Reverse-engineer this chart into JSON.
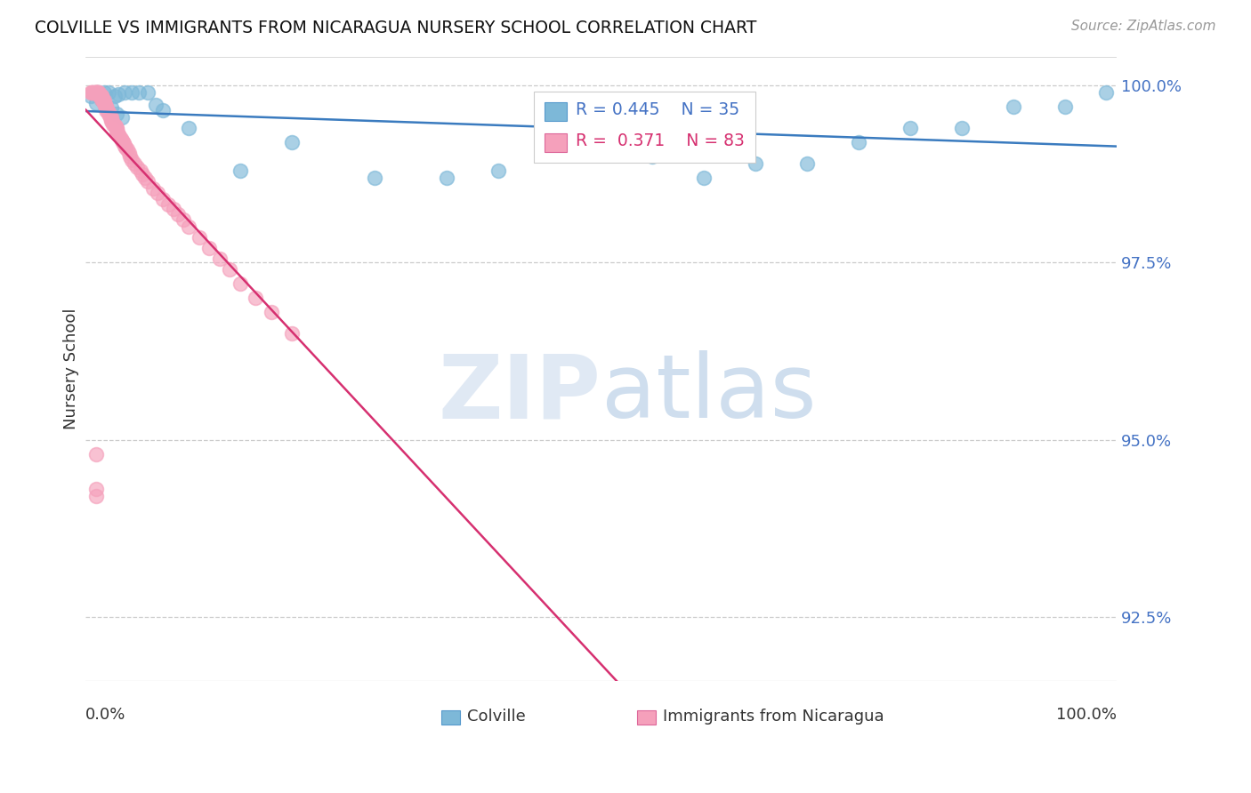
{
  "title": "COLVILLE VS IMMIGRANTS FROM NICARAGUA NURSERY SCHOOL CORRELATION CHART",
  "source": "Source: ZipAtlas.com",
  "ylabel": "Nursery School",
  "xlim": [
    0.0,
    1.0
  ],
  "ylim": [
    0.916,
    1.004
  ],
  "yticks": [
    0.925,
    0.95,
    0.975,
    1.0
  ],
  "ytick_labels": [
    "92.5%",
    "95.0%",
    "97.5%",
    "100.0%"
  ],
  "colville_color": "#7db8d8",
  "nicaragua_color": "#f5a0bb",
  "colville_line_color": "#3a7bbf",
  "nicaragua_line_color": "#d63070",
  "legend_R_colville": "R = 0.445",
  "legend_N_colville": "N = 35",
  "legend_R_nicaragua": "R =  0.371",
  "legend_N_nicaragua": "N = 83",
  "colville_x": [
    0.005,
    0.012,
    0.018,
    0.022,
    0.028,
    0.032,
    0.038,
    0.045,
    0.052,
    0.06,
    0.068,
    0.075,
    0.01,
    0.015,
    0.02,
    0.025,
    0.03,
    0.035,
    0.1,
    0.15,
    0.2,
    0.28,
    0.35,
    0.4,
    0.5,
    0.55,
    0.6,
    0.65,
    0.7,
    0.75,
    0.8,
    0.85,
    0.9,
    0.95,
    0.99
  ],
  "colville_y": [
    0.9985,
    0.999,
    0.999,
    0.999,
    0.9985,
    0.9988,
    0.999,
    0.999,
    0.999,
    0.999,
    0.9972,
    0.9965,
    0.9975,
    0.998,
    0.997,
    0.9968,
    0.996,
    0.9955,
    0.994,
    0.988,
    0.992,
    0.987,
    0.987,
    0.988,
    0.994,
    0.99,
    0.987,
    0.989,
    0.989,
    0.992,
    0.994,
    0.994,
    0.997,
    0.997,
    0.999
  ],
  "nicaragua_x": [
    0.005,
    0.006,
    0.007,
    0.008,
    0.009,
    0.01,
    0.01,
    0.01,
    0.01,
    0.01,
    0.011,
    0.012,
    0.012,
    0.013,
    0.013,
    0.014,
    0.015,
    0.015,
    0.015,
    0.015,
    0.016,
    0.017,
    0.018,
    0.018,
    0.018,
    0.019,
    0.02,
    0.02,
    0.02,
    0.02,
    0.021,
    0.022,
    0.022,
    0.023,
    0.024,
    0.025,
    0.025,
    0.025,
    0.026,
    0.027,
    0.028,
    0.029,
    0.03,
    0.03,
    0.03,
    0.031,
    0.032,
    0.033,
    0.034,
    0.035,
    0.036,
    0.037,
    0.038,
    0.039,
    0.04,
    0.042,
    0.043,
    0.045,
    0.047,
    0.05,
    0.053,
    0.055,
    0.058,
    0.06,
    0.065,
    0.07,
    0.075,
    0.08,
    0.085,
    0.09,
    0.095,
    0.1,
    0.11,
    0.12,
    0.13,
    0.14,
    0.15,
    0.165,
    0.18,
    0.2,
    0.01,
    0.01,
    0.01
  ],
  "nicaragua_y": [
    0.999,
    0.999,
    0.999,
    0.999,
    0.999,
    0.999,
    0.999,
    0.999,
    0.999,
    0.999,
    0.999,
    0.999,
    0.999,
    0.999,
    0.9988,
    0.9985,
    0.9985,
    0.9985,
    0.9985,
    0.998,
    0.998,
    0.9978,
    0.9978,
    0.9975,
    0.9975,
    0.9972,
    0.997,
    0.997,
    0.9968,
    0.9965,
    0.9963,
    0.9962,
    0.996,
    0.9958,
    0.9955,
    0.9955,
    0.9952,
    0.995,
    0.9948,
    0.9945,
    0.9943,
    0.9942,
    0.994,
    0.9938,
    0.9935,
    0.9933,
    0.993,
    0.9928,
    0.9925,
    0.9922,
    0.992,
    0.9918,
    0.9915,
    0.9912,
    0.991,
    0.9905,
    0.99,
    0.9895,
    0.989,
    0.9885,
    0.988,
    0.9875,
    0.987,
    0.9865,
    0.9855,
    0.9848,
    0.984,
    0.9832,
    0.9825,
    0.9818,
    0.981,
    0.98,
    0.9785,
    0.977,
    0.9755,
    0.974,
    0.972,
    0.97,
    0.968,
    0.965,
    0.948,
    0.943,
    0.942
  ]
}
